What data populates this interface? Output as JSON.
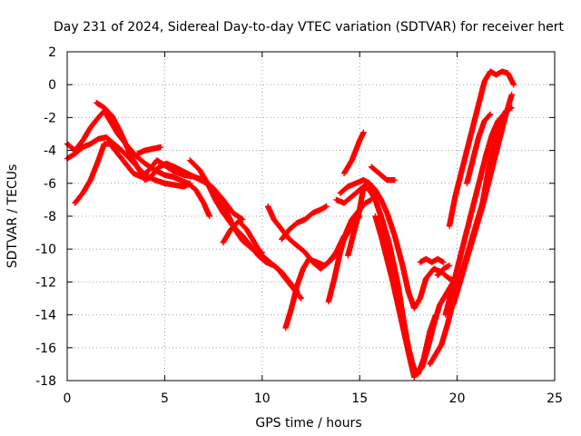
{
  "chart_data": {
    "type": "scatter",
    "title": "Day 231 of 2024, Sidereal Day-to-day VTEC variation (SDTVAR) for receiver hert",
    "xlabel": "GPS time / hours",
    "ylabel": "SDTVAR / TECUs",
    "xlim": [
      0,
      25
    ],
    "ylim": [
      -18,
      2
    ],
    "xticks": [
      0,
      5,
      10,
      15,
      20,
      25
    ],
    "yticks": [
      -18,
      -16,
      -14,
      -12,
      -10,
      -8,
      -6,
      -4,
      -2,
      0,
      2
    ],
    "grid": true,
    "marker": "plus",
    "series": [
      {
        "color": "#ff0000",
        "segments": [
          [
            [
              0.0,
              -3.6
            ],
            [
              0.4,
              -4.0
            ],
            [
              0.8,
              -3.4
            ],
            [
              1.2,
              -2.6
            ],
            [
              1.6,
              -2.0
            ],
            [
              1.9,
              -1.6
            ],
            [
              2.2,
              -2.2
            ],
            [
              2.6,
              -3.0
            ],
            [
              3.0,
              -3.6
            ],
            [
              3.5,
              -4.3
            ],
            [
              4.0,
              -4.8
            ],
            [
              4.5,
              -5.2
            ],
            [
              5.0,
              -5.5
            ],
            [
              5.4,
              -5.6
            ],
            [
              5.8,
              -5.8
            ],
            [
              6.2,
              -6.0
            ],
            [
              6.6,
              -6.4
            ],
            [
              7.0,
              -7.2
            ],
            [
              7.3,
              -8.0
            ]
          ],
          [
            [
              0.0,
              -4.5
            ],
            [
              0.4,
              -4.2
            ],
            [
              0.8,
              -3.8
            ],
            [
              1.2,
              -3.6
            ],
            [
              1.6,
              -3.3
            ],
            [
              2.0,
              -3.2
            ],
            [
              2.4,
              -3.6
            ],
            [
              2.8,
              -4.0
            ],
            [
              3.2,
              -4.5
            ],
            [
              3.6,
              -5.0
            ],
            [
              4.0,
              -5.5
            ],
            [
              4.5,
              -5.8
            ],
            [
              5.0,
              -6.0
            ],
            [
              5.5,
              -6.1
            ],
            [
              6.0,
              -6.2
            ],
            [
              6.3,
              -6.0
            ]
          ],
          [
            [
              0.4,
              -7.2
            ],
            [
              0.8,
              -6.6
            ],
            [
              1.2,
              -5.8
            ],
            [
              1.6,
              -4.6
            ],
            [
              1.9,
              -3.6
            ],
            [
              2.2,
              -3.6
            ],
            [
              2.6,
              -4.2
            ],
            [
              3.0,
              -4.8
            ],
            [
              3.4,
              -5.4
            ],
            [
              3.8,
              -5.6
            ],
            [
              4.2,
              -5.2
            ],
            [
              4.6,
              -4.6
            ],
            [
              5.0,
              -4.9
            ],
            [
              5.5,
              -5.3
            ],
            [
              6.0,
              -5.5
            ],
            [
              6.5,
              -5.6
            ],
            [
              7.0,
              -5.8
            ],
            [
              7.4,
              -6.2
            ],
            [
              7.8,
              -6.8
            ],
            [
              8.2,
              -7.8
            ],
            [
              8.6,
              -8.8
            ],
            [
              9.0,
              -9.5
            ],
            [
              9.5,
              -10.0
            ],
            [
              10.0,
              -10.2
            ]
          ],
          [
            [
              1.5,
              -1.1
            ],
            [
              1.9,
              -1.4
            ],
            [
              2.3,
              -1.9
            ],
            [
              2.7,
              -2.8
            ],
            [
              3.0,
              -3.6
            ],
            [
              3.3,
              -4.4
            ],
            [
              3.7,
              -5.2
            ],
            [
              4.0,
              -5.8
            ],
            [
              4.3,
              -5.6
            ],
            [
              4.7,
              -5.0
            ],
            [
              5.1,
              -4.8
            ],
            [
              5.5,
              -5.0
            ],
            [
              6.0,
              -5.3
            ],
            [
              6.5,
              -5.6
            ],
            [
              7.0,
              -5.9
            ],
            [
              7.5,
              -6.3
            ],
            [
              8.0,
              -7.0
            ],
            [
              8.5,
              -7.8
            ],
            [
              9.0,
              -8.2
            ]
          ],
          [
            [
              3.6,
              -4.2
            ],
            [
              4.0,
              -4.0
            ],
            [
              4.4,
              -3.9
            ],
            [
              4.8,
              -3.8
            ]
          ],
          [
            [
              6.3,
              -4.6
            ],
            [
              6.8,
              -5.2
            ],
            [
              7.2,
              -6.0
            ],
            [
              7.6,
              -7.0
            ],
            [
              8.0,
              -7.8
            ],
            [
              8.5,
              -8.6
            ],
            [
              9.0,
              -9.2
            ],
            [
              9.4,
              -9.8
            ],
            [
              9.8,
              -10.4
            ],
            [
              10.2,
              -10.8
            ],
            [
              10.6,
              -11.0
            ],
            [
              11.0,
              -11.4
            ],
            [
              11.4,
              -12.0
            ],
            [
              11.8,
              -12.6
            ]
          ],
          [
            [
              8.0,
              -9.6
            ],
            [
              8.4,
              -8.8
            ],
            [
              8.8,
              -8.3
            ],
            [
              9.2,
              -8.8
            ],
            [
              9.6,
              -9.6
            ],
            [
              10.0,
              -10.4
            ],
            [
              10.4,
              -10.8
            ],
            [
              10.8,
              -11.2
            ],
            [
              11.2,
              -11.8
            ],
            [
              11.6,
              -12.4
            ],
            [
              12.0,
              -13.0
            ]
          ],
          [
            [
              10.3,
              -7.4
            ],
            [
              10.6,
              -8.2
            ],
            [
              11.0,
              -8.8
            ],
            [
              11.4,
              -9.4
            ],
            [
              11.8,
              -9.8
            ],
            [
              12.2,
              -10.2
            ],
            [
              12.6,
              -10.8
            ],
            [
              13.0,
              -11.2
            ],
            [
              13.4,
              -10.8
            ],
            [
              13.8,
              -10.2
            ],
            [
              14.2,
              -9.2
            ]
          ],
          [
            [
              11.2,
              -14.8
            ],
            [
              11.5,
              -13.6
            ],
            [
              11.8,
              -12.2
            ],
            [
              12.1,
              -11.2
            ],
            [
              12.4,
              -10.6
            ],
            [
              12.8,
              -10.8
            ],
            [
              13.2,
              -11.0
            ],
            [
              13.6,
              -10.6
            ],
            [
              14.0,
              -9.8
            ],
            [
              14.5,
              -8.8
            ],
            [
              15.0,
              -8.0
            ]
          ],
          [
            [
              11.0,
              -9.4
            ],
            [
              11.4,
              -8.8
            ],
            [
              11.8,
              -8.4
            ],
            [
              12.2,
              -8.2
            ],
            [
              12.6,
              -7.8
            ],
            [
              13.0,
              -7.6
            ],
            [
              13.3,
              -7.4
            ]
          ],
          [
            [
              13.4,
              -13.2
            ],
            [
              13.7,
              -11.8
            ],
            [
              14.0,
              -10.2
            ],
            [
              14.3,
              -9.0
            ],
            [
              14.6,
              -8.2
            ],
            [
              15.0,
              -7.6
            ],
            [
              15.3,
              -7.2
            ],
            [
              15.6,
              -7.0
            ]
          ],
          [
            [
              13.8,
              -7.0
            ],
            [
              14.2,
              -7.2
            ],
            [
              14.6,
              -6.8
            ],
            [
              15.0,
              -6.4
            ],
            [
              15.3,
              -6.1
            ]
          ],
          [
            [
              14.0,
              -6.6
            ],
            [
              14.4,
              -6.2
            ],
            [
              14.8,
              -6.0
            ],
            [
              15.2,
              -5.8
            ],
            [
              15.5,
              -6.0
            ],
            [
              15.8,
              -6.4
            ],
            [
              16.1,
              -7.0
            ],
            [
              16.4,
              -7.8
            ],
            [
              16.8,
              -9.2
            ],
            [
              17.2,
              -11.0
            ],
            [
              17.5,
              -12.6
            ],
            [
              17.8,
              -13.6
            ],
            [
              18.1,
              -13.0
            ],
            [
              18.4,
              -11.8
            ],
            [
              18.8,
              -11.2
            ],
            [
              19.2,
              -11.4
            ],
            [
              19.6,
              -11.8
            ],
            [
              20.0,
              -12.0
            ]
          ],
          [
            [
              14.4,
              -10.4
            ],
            [
              14.7,
              -9.0
            ],
            [
              15.0,
              -7.6
            ],
            [
              15.2,
              -6.2
            ],
            [
              15.5,
              -6.4
            ],
            [
              15.8,
              -7.0
            ],
            [
              16.1,
              -8.0
            ],
            [
              16.5,
              -9.6
            ],
            [
              16.9,
              -11.8
            ],
            [
              17.2,
              -14.0
            ],
            [
              17.5,
              -16.0
            ],
            [
              17.8,
              -17.4
            ],
            [
              18.0,
              -17.6
            ],
            [
              18.3,
              -16.6
            ],
            [
              18.6,
              -15.0
            ],
            [
              18.9,
              -14.0
            ]
          ],
          [
            [
              14.2,
              -5.4
            ],
            [
              14.6,
              -4.6
            ],
            [
              15.0,
              -3.4
            ],
            [
              15.2,
              -2.9
            ]
          ],
          [
            [
              15.5,
              -6.2
            ],
            [
              15.8,
              -7.0
            ],
            [
              16.2,
              -8.4
            ],
            [
              16.6,
              -10.2
            ],
            [
              17.0,
              -12.4
            ],
            [
              17.3,
              -14.8
            ],
            [
              17.6,
              -16.6
            ],
            [
              17.9,
              -17.6
            ],
            [
              18.2,
              -17.2
            ],
            [
              18.5,
              -16.0
            ],
            [
              18.8,
              -14.6
            ],
            [
              19.1,
              -13.4
            ],
            [
              19.4,
              -12.8
            ],
            [
              19.8,
              -12.0
            ]
          ],
          [
            [
              15.6,
              -5.0
            ],
            [
              16.0,
              -5.4
            ],
            [
              16.4,
              -5.8
            ],
            [
              16.8,
              -5.8
            ]
          ],
          [
            [
              15.8,
              -8.0
            ],
            [
              16.1,
              -9.2
            ],
            [
              16.4,
              -10.6
            ],
            [
              16.7,
              -12.0
            ],
            [
              17.0,
              -13.6
            ],
            [
              17.3,
              -15.2
            ],
            [
              17.6,
              -16.8
            ],
            [
              17.8,
              -17.8
            ]
          ],
          [
            [
              18.1,
              -10.8
            ],
            [
              18.4,
              -10.6
            ],
            [
              18.7,
              -10.8
            ],
            [
              19.0,
              -10.6
            ],
            [
              19.3,
              -10.8
            ]
          ],
          [
            [
              18.6,
              -17.0
            ],
            [
              18.9,
              -16.4
            ],
            [
              19.2,
              -15.8
            ],
            [
              19.5,
              -14.6
            ],
            [
              19.8,
              -13.2
            ],
            [
              20.1,
              -12.0
            ],
            [
              20.4,
              -10.8
            ],
            [
              20.7,
              -9.6
            ],
            [
              21.0,
              -8.4
            ],
            [
              21.3,
              -7.2
            ],
            [
              21.6,
              -5.2
            ],
            [
              21.9,
              -3.6
            ],
            [
              22.2,
              -2.2
            ],
            [
              22.5,
              -1.6
            ],
            [
              22.8,
              -1.4
            ]
          ],
          [
            [
              19.0,
              -11.6
            ],
            [
              19.3,
              -11.2
            ],
            [
              19.6,
              -11.0
            ]
          ],
          [
            [
              19.4,
              -14.0
            ],
            [
              19.7,
              -12.6
            ],
            [
              20.0,
              -11.2
            ],
            [
              20.3,
              -9.8
            ],
            [
              20.6,
              -8.4
            ],
            [
              20.9,
              -7.0
            ],
            [
              21.2,
              -5.6
            ],
            [
              21.5,
              -4.2
            ],
            [
              21.8,
              -3.0
            ],
            [
              22.1,
              -2.2
            ],
            [
              22.4,
              -1.8
            ]
          ],
          [
            [
              19.6,
              -8.6
            ],
            [
              19.9,
              -6.8
            ],
            [
              20.2,
              -5.4
            ],
            [
              20.5,
              -4.0
            ],
            [
              20.8,
              -2.6
            ],
            [
              21.1,
              -1.2
            ],
            [
              21.4,
              0.2
            ],
            [
              21.7,
              0.8
            ],
            [
              22.0,
              0.6
            ],
            [
              22.3,
              0.8
            ],
            [
              22.6,
              0.7
            ],
            [
              22.9,
              0.0
            ]
          ],
          [
            [
              19.8,
              -13.4
            ],
            [
              20.1,
              -12.2
            ],
            [
              20.4,
              -11.0
            ],
            [
              20.7,
              -9.8
            ],
            [
              21.0,
              -8.6
            ],
            [
              21.3,
              -7.4
            ],
            [
              21.6,
              -6.0
            ],
            [
              21.9,
              -4.6
            ],
            [
              22.2,
              -3.2
            ],
            [
              22.5,
              -1.8
            ],
            [
              22.8,
              -0.6
            ]
          ],
          [
            [
              20.5,
              -6.0
            ],
            [
              20.8,
              -4.6
            ],
            [
              21.1,
              -3.2
            ],
            [
              21.4,
              -2.2
            ],
            [
              21.7,
              -1.8
            ]
          ]
        ]
      }
    ]
  }
}
